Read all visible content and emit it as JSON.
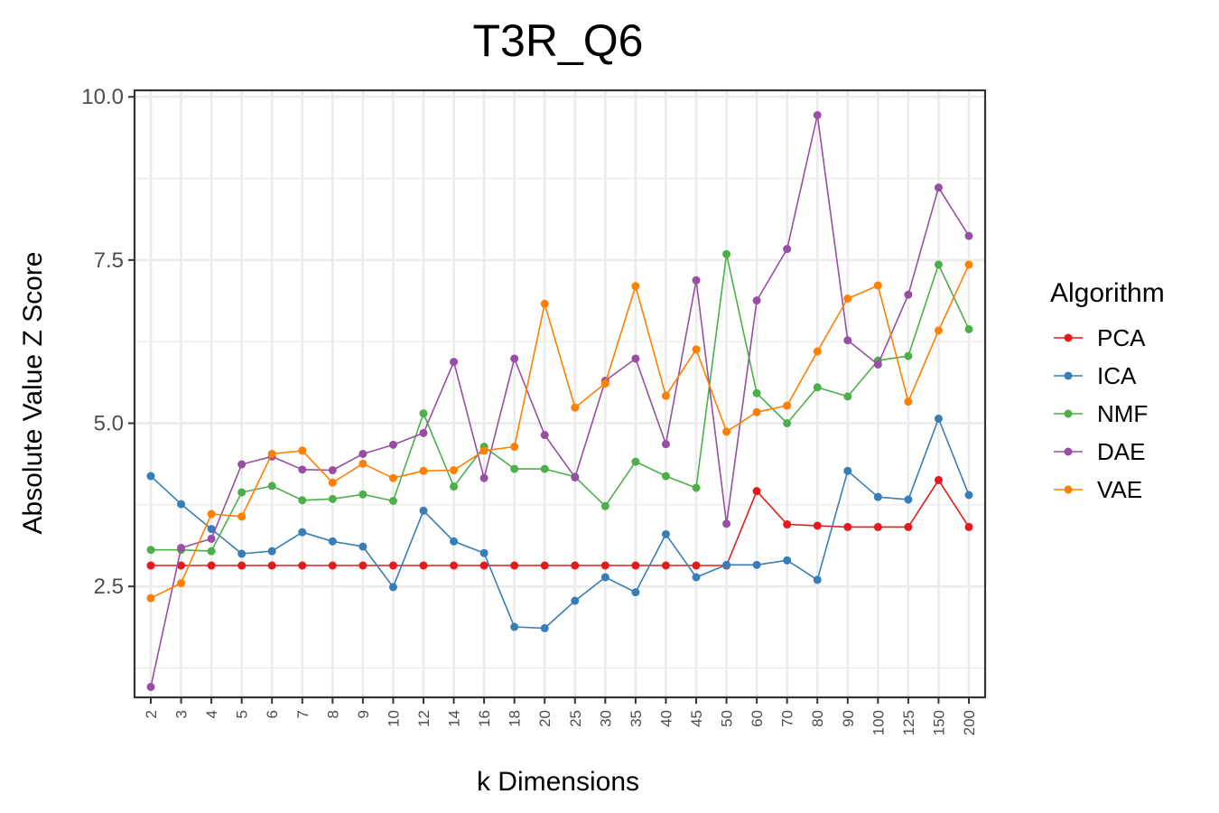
{
  "chart_data": {
    "type": "line",
    "title": "T3R_Q6",
    "xlabel": "k Dimensions",
    "ylabel": "Absolute Value Z Score",
    "categories": [
      "2",
      "3",
      "4",
      "5",
      "6",
      "7",
      "8",
      "9",
      "10",
      "12",
      "14",
      "16",
      "18",
      "20",
      "25",
      "30",
      "35",
      "40",
      "45",
      "50",
      "60",
      "70",
      "80",
      "90",
      "100",
      "125",
      "150",
      "200"
    ],
    "ylim": [
      0.8,
      10.1
    ],
    "yticks": [
      2.5,
      5.0,
      7.5,
      10.0
    ],
    "ytick_labels": [
      "2.5",
      "5.0",
      "7.5",
      "10.0"
    ],
    "grid": true,
    "legend_position": "right",
    "legend_title": "Algorithm",
    "series": [
      {
        "name": "PCA",
        "color": "#e41a1c",
        "values": [
          2.82,
          2.82,
          2.82,
          2.82,
          2.82,
          2.82,
          2.82,
          2.82,
          2.82,
          2.82,
          2.82,
          2.82,
          2.82,
          2.82,
          2.82,
          2.82,
          2.82,
          2.82,
          2.82,
          2.82,
          3.96,
          3.45,
          3.43,
          3.41,
          3.41,
          3.41,
          4.13,
          3.41
        ]
      },
      {
        "name": "ICA",
        "color": "#377eb8",
        "values": [
          4.19,
          3.76,
          3.38,
          3.0,
          3.04,
          3.33,
          3.19,
          3.11,
          2.49,
          3.66,
          3.19,
          3.01,
          1.88,
          1.86,
          2.28,
          2.64,
          2.41,
          3.3,
          2.64,
          2.83,
          2.83,
          2.9,
          2.6,
          4.27,
          3.87,
          3.83,
          5.07,
          3.9
        ]
      },
      {
        "name": "NMF",
        "color": "#4daf4a",
        "values": [
          3.06,
          3.06,
          3.04,
          3.94,
          4.04,
          3.82,
          3.84,
          3.91,
          3.81,
          5.15,
          4.03,
          4.64,
          4.3,
          4.3,
          4.18,
          3.73,
          4.41,
          4.19,
          4.01,
          7.59,
          5.46,
          5.0,
          5.55,
          5.41,
          5.96,
          6.03,
          7.43,
          6.44
        ]
      },
      {
        "name": "DAE",
        "color": "#984ea3",
        "values": [
          0.96,
          3.09,
          3.23,
          4.37,
          4.49,
          4.29,
          4.28,
          4.53,
          4.67,
          4.85,
          5.94,
          4.16,
          5.99,
          4.82,
          4.17,
          5.65,
          5.99,
          4.68,
          7.19,
          3.46,
          6.88,
          7.67,
          9.72,
          6.27,
          5.9,
          6.97,
          8.61,
          7.87
        ]
      },
      {
        "name": "VAE",
        "color": "#ff7f00",
        "values": [
          2.32,
          2.55,
          3.61,
          3.57,
          4.53,
          4.58,
          4.09,
          4.38,
          4.16,
          4.27,
          4.28,
          4.58,
          4.64,
          6.83,
          5.24,
          5.61,
          7.1,
          5.42,
          6.13,
          4.87,
          5.17,
          5.27,
          6.1,
          6.91,
          7.11,
          5.33,
          6.42,
          7.43
        ]
      }
    ]
  }
}
